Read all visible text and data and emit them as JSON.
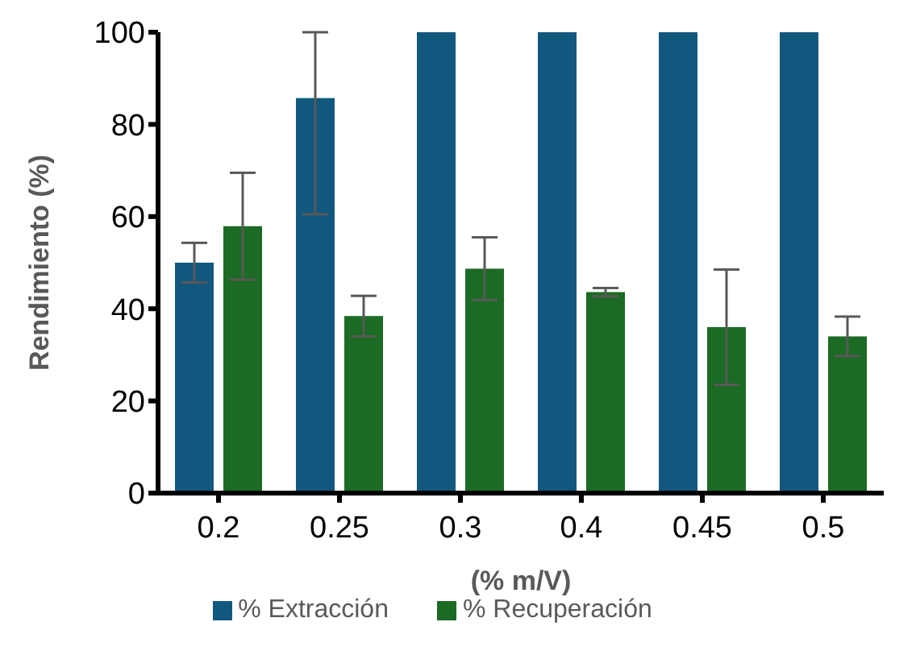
{
  "chart_data": {
    "type": "bar",
    "xlabel": "(% m/V)",
    "ylabel": "Rendimiento (%)",
    "categories": [
      "0.2",
      "0.25",
      "0.3",
      "0.4",
      "0.45",
      "0.5"
    ],
    "series": [
      {
        "name": "% Extracción",
        "color": "#12587e",
        "values": [
          50,
          85.7,
          100,
          100,
          100,
          100
        ],
        "errors": [
          4.3,
          [
            60.5,
            100
          ],
          0,
          0,
          0,
          0
        ]
      },
      {
        "name": "% Recuperación",
        "color": "#1b6b24",
        "values": [
          57.9,
          38.4,
          48.7,
          43.6,
          36,
          34
        ],
        "errors": [
          11.6,
          4.4,
          6.8,
          0.9,
          12.5,
          4.3
        ]
      }
    ],
    "ylim": [
      0,
      100
    ],
    "yticks": [
      0,
      20,
      40,
      60,
      80,
      100
    ],
    "grid": false,
    "legend": "bottom"
  }
}
